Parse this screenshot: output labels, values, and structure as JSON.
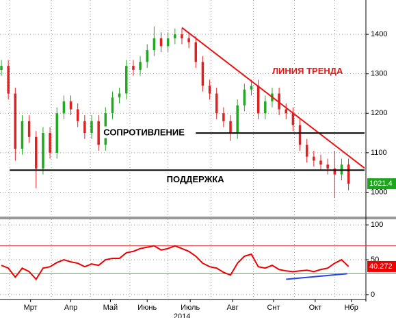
{
  "chart_data": {
    "type": "candlestick",
    "price": {
      "open": [
        1310,
        1320,
        1250,
        1110,
        1180,
        1140,
        1060,
        1150,
        1100,
        1200,
        1230,
        1210,
        1180,
        1150,
        1180,
        1120,
        1200,
        1240,
        1250,
        1320,
        1310,
        1330,
        1360,
        1390,
        1370,
        1390,
        1400,
        1390,
        1380,
        1330,
        1270,
        1250,
        1200,
        1180,
        1150,
        1220,
        1260,
        1270,
        1200,
        1230,
        1250,
        1210,
        1200,
        1170,
        1120,
        1090,
        1080,
        1070,
        1060,
        1045,
        1070
      ],
      "high": [
        1335,
        1335,
        1265,
        1195,
        1195,
        1155,
        1165,
        1165,
        1215,
        1245,
        1245,
        1225,
        1195,
        1195,
        1195,
        1215,
        1255,
        1265,
        1335,
        1335,
        1345,
        1375,
        1420,
        1405,
        1405,
        1415,
        1415,
        1405,
        1395,
        1345,
        1285,
        1265,
        1215,
        1195,
        1235,
        1275,
        1285,
        1285,
        1245,
        1265,
        1265,
        1225,
        1215,
        1185,
        1135,
        1105,
        1095,
        1085,
        1105,
        1085,
        1085
      ],
      "low": [
        1295,
        1235,
        1080,
        1095,
        1125,
        1010,
        1045,
        1085,
        1085,
        1185,
        1195,
        1165,
        1135,
        1135,
        1105,
        1105,
        1185,
        1225,
        1235,
        1295,
        1295,
        1315,
        1345,
        1355,
        1355,
        1375,
        1375,
        1365,
        1315,
        1255,
        1235,
        1185,
        1165,
        1130,
        1135,
        1205,
        1245,
        1185,
        1185,
        1215,
        1195,
        1185,
        1155,
        1105,
        1075,
        1065,
        1055,
        1045,
        985,
        1030,
        1005
      ],
      "close": [
        1320,
        1250,
        1110,
        1180,
        1140,
        1060,
        1150,
        1100,
        1200,
        1230,
        1210,
        1180,
        1150,
        1180,
        1120,
        1200,
        1240,
        1250,
        1320,
        1310,
        1330,
        1360,
        1390,
        1370,
        1390,
        1400,
        1390,
        1380,
        1330,
        1270,
        1250,
        1200,
        1180,
        1150,
        1220,
        1260,
        1270,
        1200,
        1230,
        1250,
        1210,
        1200,
        1170,
        1120,
        1090,
        1080,
        1070,
        1060,
        1045,
        1070,
        1021.4
      ],
      "up_color": "#22a822",
      "down_color": "#e02020",
      "last_color": "#1aa81a",
      "ylim": [
        940,
        1487
      ],
      "yticks": [
        1000,
        1100,
        1200,
        1300,
        1400
      ]
    },
    "rsi": {
      "values": [
        42,
        38,
        25,
        38,
        33,
        22,
        38,
        40,
        46,
        50,
        47,
        45,
        40,
        44,
        42,
        50,
        52,
        52,
        60,
        62,
        66,
        68,
        70,
        64,
        66,
        70,
        66,
        62,
        55,
        45,
        40,
        38,
        32,
        28,
        45,
        55,
        58,
        40,
        38,
        42,
        36,
        34,
        33,
        34,
        35,
        33,
        36,
        38,
        45,
        50,
        40.272
      ],
      "color": "#ee0000",
      "ylim": [
        -5,
        106
      ],
      "yticks": [
        0,
        50,
        100
      ],
      "levels": [
        {
          "value": 70,
          "color": "#e03030"
        },
        {
          "value": 30,
          "color": "#30c030"
        }
      ]
    },
    "xlim": [
      -0.2,
      52.5
    ],
    "xticks": [
      {
        "value": 4.2,
        "label": "Мрт"
      },
      {
        "value": 10,
        "label": "Апр"
      },
      {
        "value": 15.7,
        "label": "Май"
      },
      {
        "value": 21,
        "label": "Июнь"
      },
      {
        "value": 27.2,
        "label": "Июль"
      },
      {
        "value": 33.3,
        "label": "Авг"
      },
      {
        "value": 39.2,
        "label": "Снт"
      },
      {
        "value": 45.2,
        "label": "Окт"
      },
      {
        "value": 50.4,
        "label": "Нбр"
      }
    ],
    "xgrid": [
      1.2,
      7.2,
      12.8,
      18.5,
      24,
      30.2,
      36.3,
      42.2,
      48
    ],
    "year_label": "2014",
    "lines": [
      {
        "panel": "price",
        "x": [
          26,
          52.3
        ],
        "y": [
          1417,
          1061
        ],
        "color": "#ee1111"
      },
      {
        "panel": "price",
        "x": [
          1.2,
          52.3
        ],
        "y": [
          1056,
          1056
        ],
        "color": "#000000"
      },
      {
        "panel": "price",
        "x": [
          28,
          52.3
        ],
        "y": [
          1150,
          1150
        ],
        "color": "#000000"
      },
      {
        "panel": "rsi",
        "x": [
          41,
          49.8
        ],
        "y": [
          22,
          30
        ],
        "color": "#2244ee"
      }
    ],
    "annotations": [
      {
        "text": "ЛИНИЯ ТРЕНДА",
        "x": 39,
        "y": 1305,
        "color": "#ee1111"
      },
      {
        "text": "СОПРОТИВЛЕНИЕ",
        "x": 14.7,
        "y": 1150,
        "color": "#000000"
      },
      {
        "text": "ПОДДЕРЖКА",
        "x": 23.8,
        "y": 1031,
        "color": "#000000"
      }
    ]
  }
}
